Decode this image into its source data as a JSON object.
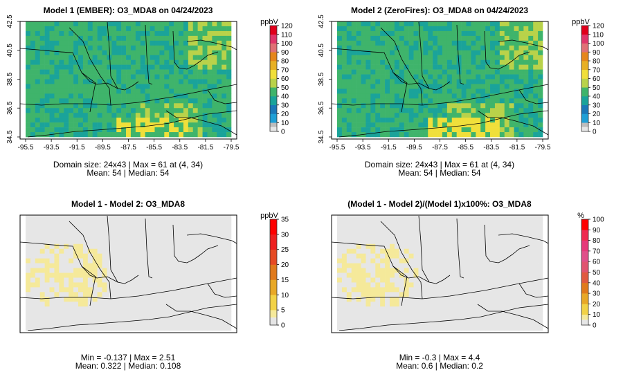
{
  "panels": [
    {
      "title": "Model 1 (EMBER): O3_MDA8 on 04/24/2023",
      "kind": "model",
      "unit": "ppbV",
      "colorbar": {
        "ticks": [
          "0",
          "10",
          "20",
          "30",
          "40",
          "50",
          "60",
          "70",
          "80",
          "90",
          "100",
          "110",
          "120"
        ],
        "max": 120
      },
      "x_ticks": [
        "-95.5",
        "-93.5",
        "-91.5",
        "-89.5",
        "-87.5",
        "-85.5",
        "-83.5",
        "-81.5",
        "-79.5"
      ],
      "y_ticks": [
        "34.5",
        "36.5",
        "38.5",
        "40.5",
        "42.5"
      ],
      "stats_line1": "Domain size: 24x43 | Max = 61 at (4, 34)",
      "stats_line2": "Mean: 54 |  Median: 54"
    },
    {
      "title": "Model 2 (ZeroFires): O3_MDA8 on 04/24/2023",
      "kind": "model",
      "unit": "ppbV",
      "colorbar": {
        "ticks": [
          "0",
          "10",
          "20",
          "30",
          "40",
          "50",
          "60",
          "70",
          "80",
          "90",
          "100",
          "110",
          "120"
        ],
        "max": 120
      },
      "x_ticks": [
        "-95.5",
        "-93.5",
        "-91.5",
        "-89.5",
        "-87.5",
        "-85.5",
        "-83.5",
        "-81.5",
        "-79.5"
      ],
      "y_ticks": [
        "34.5",
        "36.5",
        "38.5",
        "40.5",
        "42.5"
      ],
      "stats_line1": "Domain size: 24x43 | Max = 61 at (4, 34)",
      "stats_line2": "Mean: 54 |  Median: 54"
    },
    {
      "title": "Model 1 - Model 2: O3_MDA8",
      "kind": "diff",
      "unit": "ppbV",
      "colorbar": {
        "ticks": [
          "0",
          "5",
          "10",
          "15",
          "20",
          "25",
          "30",
          "35"
        ],
        "max": 35
      },
      "stats_line1": "Min = -0.137 | Max = 2.51",
      "stats_line2": "Mean: 0.322 |  Median: 0.108"
    },
    {
      "title": "(Model 1 - Model 2)/(Model 1)x100%: O3_MDA8",
      "kind": "pct",
      "unit": "%",
      "colorbar": {
        "ticks": [
          "0",
          "10",
          "20",
          "30",
          "40",
          "50",
          "60",
          "70",
          "80",
          "90",
          "100"
        ],
        "max": 100
      },
      "stats_line1": "Min = -0.3 | Max = 4.4",
      "stats_line2": "Mean: 0.6 |  Median: 0.2"
    }
  ],
  "colors": {
    "model_ramp": [
      "#e6e6e6",
      "#bdbdbd",
      "#1f9fd6",
      "#1b78b8",
      "#1aa39a",
      "#3fb46b",
      "#b9d24a",
      "#f0df3a",
      "#e8b024",
      "#e5861b",
      "#e07075",
      "#e0366a",
      "#e0001b"
    ],
    "diff_ramp": [
      "#e6e6e6",
      "#f5e99a",
      "#f2d246",
      "#e8a827",
      "#e07a1c",
      "#e64b24",
      "#ee2020",
      "#ff0000"
    ],
    "pct_ramp": [
      "#e6e6e6",
      "#f5e99a",
      "#f2d246",
      "#e8a827",
      "#e07a1c",
      "#e05a40",
      "#e05470",
      "#e0508a",
      "#e63a7a",
      "#ee2a50",
      "#ff0000"
    ]
  }
}
